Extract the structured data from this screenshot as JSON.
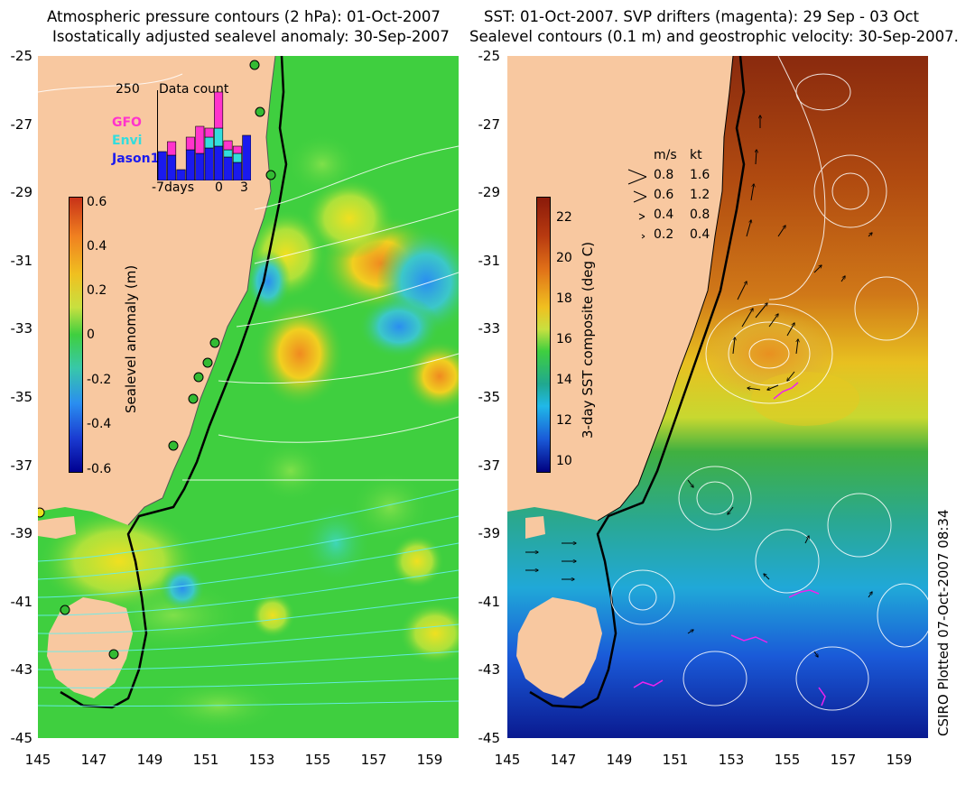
{
  "left_panel": {
    "title_line1": "Atmospheric pressure contours (2 hPa): 01-Oct-2007",
    "title_line2": "Isostatically adjusted sealevel anomaly: 30-Sep-2007",
    "colorbar_label": "Sealevel anomaly (m)",
    "colorbar_ticks": [
      "0.6",
      "0.4",
      "0.2",
      "0",
      "-0.2",
      "-0.4",
      "-0.6"
    ],
    "inset": {
      "max_label": "250",
      "title": "Data count",
      "legend": [
        {
          "name": "GFO",
          "color": "#ff33cc"
        },
        {
          "name": "Envi",
          "color": "#33dddd"
        },
        {
          "name": "Jason1",
          "color": "#1a1aee"
        }
      ],
      "x_ticks": [
        "-7days",
        "0",
        "3"
      ],
      "bars": [
        {
          "gfo": 0.0,
          "envi": 0.0,
          "jason": 0.32
        },
        {
          "gfo": 0.15,
          "envi": 0.0,
          "jason": 0.28
        },
        {
          "gfo": 0.0,
          "envi": 0.0,
          "jason": 0.12
        },
        {
          "gfo": 0.14,
          "envi": 0.0,
          "jason": 0.34
        },
        {
          "gfo": 0.3,
          "envi": 0.0,
          "jason": 0.3
        },
        {
          "gfo": 0.1,
          "envi": 0.12,
          "jason": 0.36
        },
        {
          "gfo": 0.4,
          "envi": 0.2,
          "jason": 0.38
        },
        {
          "gfo": 0.1,
          "envi": 0.08,
          "jason": 0.26
        },
        {
          "gfo": 0.08,
          "envi": 0.1,
          "jason": 0.2
        },
        {
          "gfo": 0.0,
          "envi": 0.0,
          "jason": 0.5
        }
      ]
    }
  },
  "right_panel": {
    "title_line1": "SST: 01-Oct-2007. SVP drifters (magenta): 29 Sep - 03 Oct",
    "title_line2": "Sealevel contours (0.1 m) and geostrophic velocity: 30-Sep-2007.",
    "colorbar_label": "3-day SST composite (deg C)",
    "colorbar_ticks": [
      "22",
      "20",
      "18",
      "16",
      "14",
      "12",
      "10"
    ],
    "velocity_legend": {
      "header_ms": "m/s",
      "header_kt": "kt",
      "rows": [
        {
          "ms": "0.8",
          "kt": "1.6",
          "scale": 1.0
        },
        {
          "ms": "0.6",
          "kt": "1.2",
          "scale": 0.75
        },
        {
          "ms": "0.4",
          "kt": "0.8",
          "scale": 0.5
        },
        {
          "ms": "0.2",
          "kt": "0.4",
          "scale": 0.25
        }
      ]
    }
  },
  "axes": {
    "lat_ticks": [
      "-25",
      "-27",
      "-29",
      "-31",
      "-33",
      "-35",
      "-37",
      "-39",
      "-41",
      "-43",
      "-45"
    ],
    "lon_ticks": [
      "145",
      "147",
      "149",
      "151",
      "153",
      "155",
      "157",
      "159"
    ]
  },
  "credit": "CSIRO Plotted 07-Oct-2007 08:34",
  "colors": {
    "land": "#f8c8a0",
    "ssla_bg": "#3fcf3f",
    "coast": "#000000",
    "drifter": "#ee22ee",
    "tide_gauge": "#33bb33"
  }
}
